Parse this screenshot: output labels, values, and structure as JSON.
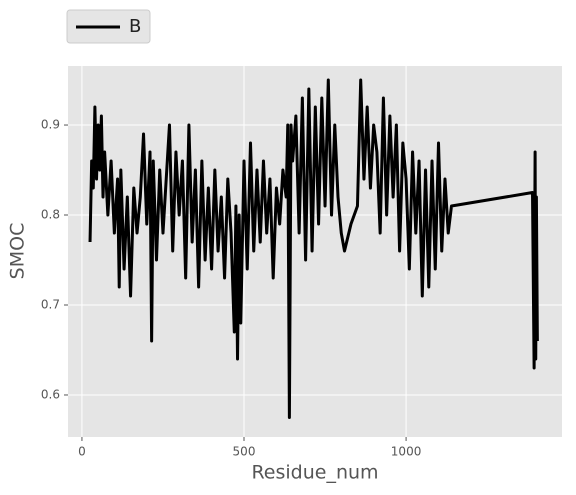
{
  "chart_data": {
    "type": "line",
    "xlabel": "Residue_num",
    "ylabel": "SMOC",
    "x": [
      25,
      30,
      35,
      40,
      45,
      50,
      55,
      60,
      65,
      70,
      80,
      90,
      100,
      110,
      115,
      120,
      130,
      140,
      150,
      160,
      170,
      180,
      190,
      200,
      210,
      215,
      220,
      230,
      240,
      250,
      260,
      270,
      280,
      290,
      300,
      310,
      320,
      330,
      340,
      350,
      360,
      370,
      380,
      390,
      400,
      410,
      420,
      430,
      440,
      450,
      460,
      470,
      475,
      480,
      485,
      490,
      500,
      510,
      520,
      530,
      540,
      550,
      560,
      570,
      580,
      590,
      600,
      610,
      620,
      630,
      635,
      640,
      645,
      650,
      660,
      670,
      680,
      690,
      700,
      710,
      720,
      730,
      740,
      750,
      760,
      770,
      780,
      790,
      800,
      810,
      830,
      850,
      860,
      870,
      880,
      890,
      900,
      910,
      920,
      930,
      940,
      950,
      960,
      970,
      980,
      990,
      1000,
      1010,
      1020,
      1030,
      1040,
      1050,
      1060,
      1070,
      1080,
      1090,
      1100,
      1110,
      1120,
      1130,
      1140,
      1390,
      1395,
      1398,
      1400,
      1402,
      1405
    ],
    "series": [
      {
        "name": "B",
        "color": "#000000",
        "values": [
          0.77,
          0.86,
          0.83,
          0.92,
          0.84,
          0.9,
          0.85,
          0.91,
          0.82,
          0.87,
          0.8,
          0.86,
          0.78,
          0.84,
          0.72,
          0.85,
          0.74,
          0.82,
          0.71,
          0.83,
          0.78,
          0.82,
          0.89,
          0.79,
          0.87,
          0.66,
          0.86,
          0.75,
          0.85,
          0.78,
          0.84,
          0.9,
          0.76,
          0.87,
          0.8,
          0.86,
          0.73,
          0.9,
          0.77,
          0.85,
          0.72,
          0.86,
          0.75,
          0.83,
          0.74,
          0.85,
          0.76,
          0.82,
          0.73,
          0.84,
          0.78,
          0.67,
          0.81,
          0.64,
          0.8,
          0.68,
          0.86,
          0.74,
          0.88,
          0.76,
          0.85,
          0.77,
          0.86,
          0.78,
          0.84,
          0.73,
          0.83,
          0.79,
          0.85,
          0.82,
          0.9,
          0.575,
          0.9,
          0.86,
          0.91,
          0.78,
          0.93,
          0.75,
          0.94,
          0.76,
          0.92,
          0.79,
          0.93,
          0.81,
          0.95,
          0.8,
          0.9,
          0.82,
          0.78,
          0.76,
          0.79,
          0.81,
          0.95,
          0.84,
          0.92,
          0.83,
          0.9,
          0.87,
          0.78,
          0.93,
          0.8,
          0.91,
          0.82,
          0.9,
          0.76,
          0.88,
          0.84,
          0.74,
          0.87,
          0.78,
          0.86,
          0.71,
          0.85,
          0.72,
          0.86,
          0.74,
          0.88,
          0.76,
          0.84,
          0.78,
          0.81,
          0.825,
          0.63,
          0.87,
          0.64,
          0.82,
          0.66
        ]
      }
    ],
    "xlim": [
      -43,
      1481
    ],
    "xticks": [
      0,
      500,
      1000
    ],
    "ylim": [
      0.5533,
      0.9656
    ],
    "yticks": [
      0.6,
      0.7,
      0.8,
      0.9
    ],
    "grid": true,
    "legend_loc": "upper left"
  }
}
